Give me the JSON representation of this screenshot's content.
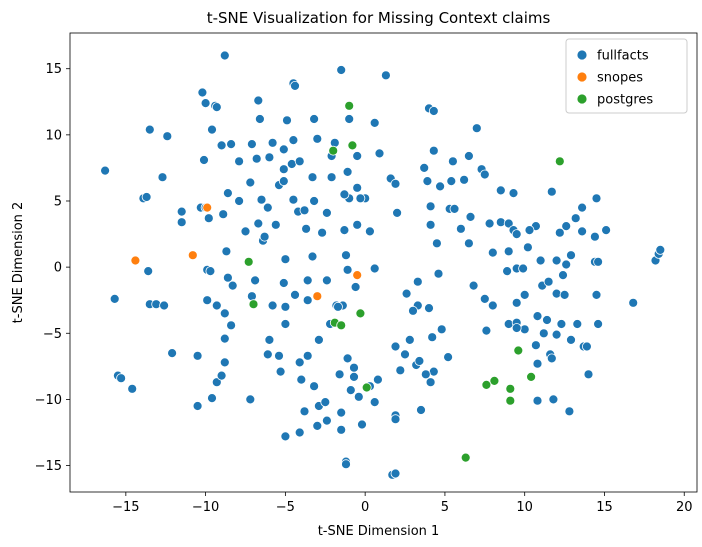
{
  "chart_data": {
    "type": "scatter",
    "title": "t-SNE Visualization for Missing Context claims",
    "xlabel": "t-SNE Dimension 1",
    "ylabel": "t-SNE Dimension 2",
    "xlim": [
      -18.5,
      20.8
    ],
    "ylim": [
      -17.0,
      17.7
    ],
    "xticks": [
      -15,
      -10,
      -5,
      0,
      5,
      10,
      15,
      20
    ],
    "yticks": [
      -15,
      -10,
      -5,
      0,
      5,
      10,
      15
    ],
    "grid": false,
    "legend_position": "top-right",
    "series": [
      {
        "name": "fullfacts",
        "color": "#1f77b4",
        "points": [
          [
            -8.8,
            16.0
          ],
          [
            -1.5,
            14.9
          ],
          [
            1.3,
            14.5
          ],
          [
            -4.5,
            13.9
          ],
          [
            -4.4,
            13.7
          ],
          [
            -10.2,
            13.2
          ],
          [
            -10.0,
            12.4
          ],
          [
            -9.4,
            12.2
          ],
          [
            -9.3,
            12.1
          ],
          [
            -6.7,
            12.6
          ],
          [
            -6.6,
            11.2
          ],
          [
            -4.9,
            11.1
          ],
          [
            -3.2,
            11.2
          ],
          [
            -1.0,
            11.2
          ],
          [
            0.6,
            10.9
          ],
          [
            4.0,
            12.0
          ],
          [
            4.3,
            11.8
          ],
          [
            7.0,
            10.5
          ],
          [
            -13.5,
            10.4
          ],
          [
            -12.4,
            9.9
          ],
          [
            -9.6,
            10.4
          ],
          [
            -8.4,
            9.3
          ],
          [
            -7.1,
            9.3
          ],
          [
            -5.8,
            9.4
          ],
          [
            -4.5,
            9.6
          ],
          [
            -3.0,
            9.7
          ],
          [
            -1.9,
            9.4
          ],
          [
            -0.5,
            8.4
          ],
          [
            0.9,
            8.6
          ],
          [
            4.3,
            8.8
          ],
          [
            5.5,
            8.0
          ],
          [
            6.5,
            8.4
          ],
          [
            -9.0,
            9.2
          ],
          [
            -5.1,
            8.9
          ],
          [
            -2.1,
            8.4
          ],
          [
            -16.3,
            7.3
          ],
          [
            -12.7,
            6.8
          ],
          [
            -10.1,
            8.1
          ],
          [
            -7.9,
            8.0
          ],
          [
            -6.8,
            8.2
          ],
          [
            -6.0,
            8.3
          ],
          [
            -5.1,
            7.4
          ],
          [
            -4.6,
            7.8
          ],
          [
            -4.1,
            8.0
          ],
          [
            -3.3,
            6.8
          ],
          [
            -2.1,
            6.8
          ],
          [
            -1.1,
            7.2
          ],
          [
            -0.5,
            6.0
          ],
          [
            -1.0,
            5.2
          ],
          [
            1.6,
            6.7
          ],
          [
            1.9,
            6.3
          ],
          [
            3.7,
            7.5
          ],
          [
            3.9,
            6.5
          ],
          [
            4.7,
            6.1
          ],
          [
            5.4,
            6.5
          ],
          [
            6.2,
            6.6
          ],
          [
            7.3,
            7.4
          ],
          [
            7.5,
            7.0
          ],
          [
            8.5,
            5.8
          ],
          [
            9.3,
            5.6
          ],
          [
            11.7,
            5.7
          ],
          [
            -13.9,
            5.2
          ],
          [
            -13.7,
            5.3
          ],
          [
            -11.5,
            4.2
          ],
          [
            -10.3,
            4.5
          ],
          [
            -8.6,
            5.6
          ],
          [
            -7.9,
            5.0
          ],
          [
            -7.2,
            6.4
          ],
          [
            -6.5,
            5.1
          ],
          [
            -6.1,
            4.5
          ],
          [
            -5.4,
            6.2
          ],
          [
            -5.1,
            6.5
          ],
          [
            -4.5,
            5.1
          ],
          [
            -4.2,
            4.2
          ],
          [
            -3.8,
            4.3
          ],
          [
            -3.2,
            5.0
          ],
          [
            -2.4,
            4.1
          ],
          [
            -1.3,
            5.5
          ],
          [
            0.0,
            5.2
          ],
          [
            -0.3,
            5.2
          ],
          [
            2.0,
            4.1
          ],
          [
            4.1,
            4.6
          ],
          [
            5.3,
            4.4
          ],
          [
            5.6,
            4.4
          ],
          [
            6.6,
            3.8
          ],
          [
            7.8,
            3.3
          ],
          [
            8.5,
            3.4
          ],
          [
            9.0,
            3.3
          ],
          [
            9.3,
            2.8
          ],
          [
            10.7,
            3.1
          ],
          [
            12.6,
            3.1
          ],
          [
            13.2,
            3.7
          ],
          [
            13.6,
            4.5
          ],
          [
            14.5,
            5.2
          ],
          [
            -11.5,
            3.4
          ],
          [
            -8.9,
            4.0
          ],
          [
            -7.5,
            2.7
          ],
          [
            -6.4,
            2.0
          ],
          [
            -6.7,
            3.3
          ],
          [
            -5.6,
            3.2
          ],
          [
            -3.7,
            2.9
          ],
          [
            -2.7,
            2.6
          ],
          [
            -1.3,
            2.8
          ],
          [
            0.3,
            2.7
          ],
          [
            -0.5,
            3.2
          ],
          [
            4.1,
            3.2
          ],
          [
            6.0,
            2.9
          ],
          [
            9.5,
            2.5
          ],
          [
            10.3,
            2.8
          ],
          [
            12.2,
            2.6
          ],
          [
            13.6,
            2.7
          ],
          [
            14.4,
            2.3
          ],
          [
            15.1,
            2.8
          ],
          [
            -9.8,
            3.7
          ],
          [
            -10.0,
            4.5
          ],
          [
            -6.3,
            2.3
          ],
          [
            -8.7,
            1.2
          ],
          [
            -5.0,
            0.6
          ],
          [
            -3.3,
            0.8
          ],
          [
            -1.2,
            0.9
          ],
          [
            4.5,
            1.8
          ],
          [
            6.5,
            1.8
          ],
          [
            8.0,
            1.1
          ],
          [
            9.0,
            1.2
          ],
          [
            10.2,
            1.5
          ],
          [
            -13.6,
            -0.3
          ],
          [
            -9.9,
            -0.2
          ],
          [
            -9.7,
            -0.3
          ],
          [
            -8.6,
            -0.8
          ],
          [
            -6.9,
            -1.0
          ],
          [
            -5.1,
            -1.2
          ],
          [
            -3.6,
            -1.0
          ],
          [
            -2.4,
            -1.0
          ],
          [
            -1.1,
            -0.2
          ],
          [
            -0.6,
            -1.5
          ],
          [
            0.6,
            -0.1
          ],
          [
            3.3,
            -1.1
          ],
          [
            4.6,
            -0.5
          ],
          [
            6.8,
            -1.4
          ],
          [
            7.5,
            -2.4
          ],
          [
            8.9,
            -0.3
          ],
          [
            9.5,
            -0.1
          ],
          [
            9.9,
            -0.1
          ],
          [
            11.0,
            0.5
          ],
          [
            12.0,
            0.5
          ],
          [
            12.6,
            0.2
          ],
          [
            12.9,
            0.9
          ],
          [
            14.4,
            0.4
          ],
          [
            14.6,
            0.4
          ],
          [
            18.2,
            0.5
          ],
          [
            18.4,
            1.0
          ],
          [
            18.5,
            1.3
          ],
          [
            -15.7,
            -2.4
          ],
          [
            -13.5,
            -2.8
          ],
          [
            -13.1,
            -2.8
          ],
          [
            -12.6,
            -2.9
          ],
          [
            -9.9,
            -2.5
          ],
          [
            -9.3,
            -2.9
          ],
          [
            -8.3,
            -1.4
          ],
          [
            -7.1,
            -2.2
          ],
          [
            -5.8,
            -2.9
          ],
          [
            -5.0,
            -3.0
          ],
          [
            -4.4,
            -2.1
          ],
          [
            -3.6,
            -2.5
          ],
          [
            -1.8,
            -2.9
          ],
          [
            -1.4,
            -2.9
          ],
          [
            -1.7,
            -3.0
          ],
          [
            2.6,
            -2.0
          ],
          [
            3.3,
            -2.9
          ],
          [
            4.0,
            -3.1
          ],
          [
            8.0,
            -2.9
          ],
          [
            9.5,
            -2.7
          ],
          [
            10.0,
            -2.1
          ],
          [
            11.1,
            -1.4
          ],
          [
            11.5,
            -1.1
          ],
          [
            12.0,
            -2.0
          ],
          [
            12.4,
            -0.6
          ],
          [
            12.5,
            -2.1
          ],
          [
            14.5,
            -2.1
          ],
          [
            16.8,
            -2.7
          ],
          [
            -8.8,
            -3.5
          ],
          [
            -8.4,
            -4.4
          ],
          [
            -5.0,
            -4.3
          ],
          [
            -2.2,
            -4.3
          ],
          [
            3.0,
            -3.3
          ],
          [
            7.6,
            -4.8
          ],
          [
            9.0,
            -4.3
          ],
          [
            9.5,
            -4.2
          ],
          [
            10.0,
            -4.7
          ],
          [
            10.8,
            -3.7
          ],
          [
            11.4,
            -4.0
          ],
          [
            12.3,
            -4.3
          ],
          [
            13.3,
            -4.3
          ],
          [
            11.2,
            -5.0
          ],
          [
            12.0,
            -5.1
          ],
          [
            12.9,
            -5.5
          ],
          [
            14.6,
            -4.3
          ],
          [
            -8.8,
            -5.4
          ],
          [
            -6.0,
            -5.5
          ],
          [
            -5.4,
            -6.7
          ],
          [
            -2.9,
            -5.5
          ],
          [
            -1.1,
            -6.9
          ],
          [
            -0.7,
            -7.6
          ],
          [
            1.9,
            -6.0
          ],
          [
            2.8,
            -5.5
          ],
          [
            4.2,
            -5.3
          ],
          [
            4.8,
            -4.7
          ],
          [
            9.5,
            -4.6
          ],
          [
            10.7,
            -5.9
          ],
          [
            11.6,
            -6.6
          ],
          [
            11.7,
            -6.9
          ],
          [
            13.7,
            -6.0
          ],
          [
            13.9,
            -6.0
          ],
          [
            -12.1,
            -6.5
          ],
          [
            -10.5,
            -6.7
          ],
          [
            -8.8,
            -7.2
          ],
          [
            -6.1,
            -6.6
          ],
          [
            -5.3,
            -7.9
          ],
          [
            -4.1,
            -7.2
          ],
          [
            -3.6,
            -6.7
          ],
          [
            -1.6,
            -8.1
          ],
          [
            -0.7,
            -8.3
          ],
          [
            0.8,
            -8.5
          ],
          [
            2.2,
            -7.8
          ],
          [
            2.5,
            -6.6
          ],
          [
            3.2,
            -7.4
          ],
          [
            3.4,
            -7.1
          ],
          [
            4.3,
            -7.9
          ],
          [
            4.1,
            -8.7
          ],
          [
            5.2,
            -6.8
          ],
          [
            10.8,
            -7.3
          ],
          [
            -15.5,
            -8.2
          ],
          [
            -15.3,
            -8.4
          ],
          [
            -14.6,
            -9.2
          ],
          [
            -9.3,
            -8.7
          ],
          [
            -9.0,
            -8.2
          ],
          [
            -4.0,
            -8.5
          ],
          [
            -3.2,
            -9.0
          ],
          [
            -0.9,
            -9.3
          ],
          [
            0.3,
            -9.0
          ],
          [
            3.8,
            -8.1
          ],
          [
            14.0,
            -8.1
          ],
          [
            -10.5,
            -10.5
          ],
          [
            -9.6,
            -9.9
          ],
          [
            -7.2,
            -10.0
          ],
          [
            -3.8,
            -10.9
          ],
          [
            -2.9,
            -10.5
          ],
          [
            -2.5,
            -10.2
          ],
          [
            -1.5,
            -11.0
          ],
          [
            -0.4,
            -9.8
          ],
          [
            0.6,
            -10.2
          ],
          [
            1.9,
            -11.2
          ],
          [
            1.9,
            -11.5
          ],
          [
            3.5,
            -10.8
          ],
          [
            10.8,
            -10.1
          ],
          [
            11.8,
            -10.0
          ],
          [
            12.8,
            -10.9
          ],
          [
            -5.0,
            -12.8
          ],
          [
            -4.1,
            -12.5
          ],
          [
            -3.0,
            -12.0
          ],
          [
            -2.4,
            -11.6
          ],
          [
            -1.5,
            -12.3
          ],
          [
            -0.2,
            -11.9
          ],
          [
            -1.2,
            -14.7
          ],
          [
            -1.2,
            -14.9
          ],
          [
            1.7,
            -15.7
          ],
          [
            1.9,
            -15.6
          ]
        ]
      },
      {
        "name": "snopes",
        "color": "#ff7f0e",
        "points": [
          [
            -9.9,
            4.5
          ],
          [
            -10.8,
            0.9
          ],
          [
            -14.4,
            0.5
          ],
          [
            -0.5,
            -0.6
          ],
          [
            -3.0,
            -2.2
          ]
        ]
      },
      {
        "name": "postgres",
        "color": "#2ca02c",
        "points": [
          [
            -1.0,
            12.2
          ],
          [
            -0.8,
            9.2
          ],
          [
            -2.0,
            8.8
          ],
          [
            12.2,
            8.0
          ],
          [
            -7.3,
            0.4
          ],
          [
            -7.0,
            -2.8
          ],
          [
            -0.3,
            -3.5
          ],
          [
            -1.9,
            -4.2
          ],
          [
            -1.5,
            -4.4
          ],
          [
            9.6,
            -6.3
          ],
          [
            0.1,
            -9.1
          ],
          [
            8.1,
            -8.6
          ],
          [
            7.6,
            -8.9
          ],
          [
            9.1,
            -9.2
          ],
          [
            10.4,
            -8.3
          ],
          [
            9.1,
            -10.1
          ],
          [
            6.3,
            -14.4
          ]
        ]
      }
    ]
  }
}
